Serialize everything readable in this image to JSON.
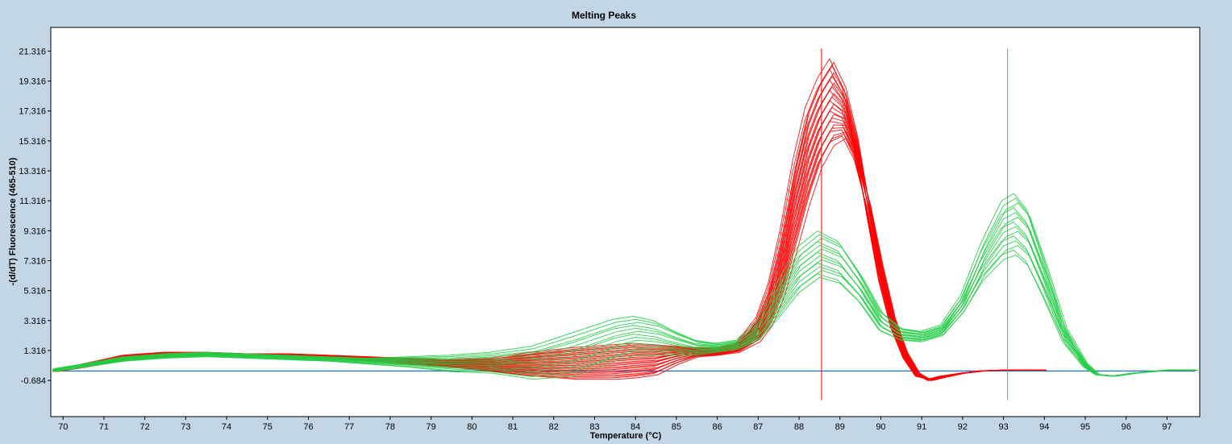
{
  "chart_data": {
    "type": "line",
    "title": "Melting Peaks",
    "xlabel": "Temperature (°C)",
    "ylabel": "-(d/dT) Fluorescence (465-510)",
    "xlim": [
      69.7,
      97.8
    ],
    "ylim": [
      -3.1,
      22.9
    ],
    "x_ticks": [
      "70",
      "71",
      "72",
      "73",
      "74",
      "75",
      "76",
      "77",
      "78",
      "79",
      "80",
      "81",
      "82",
      "83",
      "84",
      "85",
      "86",
      "87",
      "88",
      "89",
      "90",
      "91",
      "92",
      "93",
      "94",
      "95",
      "96",
      "97"
    ],
    "y_ticks": [
      "21.316",
      "19.316",
      "17.316",
      "15.316",
      "13.316",
      "11.316",
      "9.316",
      "7.316",
      "5.316",
      "3.316",
      "1.316",
      "-0.684"
    ],
    "grid": false,
    "legend": "none",
    "baseline": {
      "color": "#1f6fd6",
      "value": -0.05
    },
    "series": [
      {
        "color": "#ff0000",
        "tm_marker": 88.55,
        "x": [
          69.8,
          70.5,
          71.5,
          72.5,
          73.5,
          74.5,
          75.5,
          76.5,
          77.5,
          78.5,
          79.5,
          80.5,
          81.5,
          82.5,
          83.5,
          84.0,
          84.5,
          85.0,
          85.5,
          86.0,
          86.5,
          87.0,
          87.3,
          87.6,
          87.9,
          88.2,
          88.5,
          88.8,
          89.1,
          89.4,
          89.7,
          90.0,
          90.3,
          90.6,
          90.9,
          91.2,
          91.5,
          92.0,
          92.5,
          93.0,
          93.5,
          94.0
        ],
        "y_high": [
          0.0,
          0.4,
          1.0,
          1.2,
          1.2,
          1.1,
          1.1,
          1.0,
          0.9,
          0.8,
          0.7,
          0.8,
          1.2,
          1.5,
          1.7,
          1.8,
          1.7,
          1.6,
          1.5,
          1.5,
          1.8,
          3.5,
          5.8,
          9.5,
          14.0,
          17.5,
          19.5,
          20.8,
          19.0,
          15.5,
          10.5,
          6.0,
          2.8,
          0.8,
          -0.4,
          -0.6,
          -0.4,
          -0.2,
          -0.05,
          0.0,
          0.0,
          0.0
        ],
        "y_low": [
          -0.1,
          0.2,
          0.7,
          0.9,
          1.0,
          1.0,
          0.9,
          0.8,
          0.6,
          0.4,
          0.2,
          -0.1,
          -0.4,
          -0.6,
          -0.6,
          -0.5,
          -0.3,
          0.4,
          0.9,
          1.0,
          1.2,
          1.9,
          3.0,
          5.0,
          8.0,
          11.0,
          13.5,
          15.0,
          15.5,
          14.0,
          11.0,
          7.0,
          3.5,
          1.2,
          -0.2,
          -0.7,
          -0.5,
          -0.2,
          -0.05,
          0.0,
          0.0,
          0.0
        ],
        "count": 26
      },
      {
        "color": "#22cc44",
        "tm_marker": 93.1,
        "x": [
          69.8,
          70.5,
          71.5,
          72.5,
          73.5,
          74.5,
          75.5,
          76.5,
          77.5,
          78.5,
          79.5,
          80.5,
          81.5,
          82.5,
          83.5,
          84.0,
          84.5,
          85.0,
          85.5,
          86.0,
          86.5,
          87.0,
          87.5,
          88.0,
          88.5,
          89.0,
          89.5,
          90.0,
          90.5,
          91.0,
          91.5,
          92.0,
          92.5,
          93.0,
          93.3,
          93.6,
          94.0,
          94.5,
          95.0,
          95.3,
          95.7,
          96.2,
          97.0,
          97.7
        ],
        "y_high": [
          0.1,
          0.4,
          0.9,
          1.1,
          1.2,
          1.1,
          1.0,
          0.9,
          0.8,
          0.9,
          1.0,
          1.2,
          1.6,
          2.5,
          3.4,
          3.6,
          3.3,
          2.6,
          2.0,
          1.8,
          2.0,
          3.2,
          5.8,
          8.2,
          9.3,
          8.6,
          6.5,
          4.0,
          2.8,
          2.6,
          3.0,
          5.0,
          8.5,
          11.3,
          11.8,
          10.8,
          7.5,
          3.0,
          0.5,
          -0.3,
          -0.4,
          -0.2,
          0.0,
          0.0
        ],
        "y_low": [
          -0.1,
          0.2,
          0.6,
          0.8,
          0.9,
          0.8,
          0.7,
          0.6,
          0.4,
          0.2,
          -0.1,
          -0.2,
          -0.6,
          -0.4,
          0.6,
          1.0,
          1.0,
          1.0,
          1.0,
          1.2,
          1.4,
          2.0,
          3.5,
          5.2,
          6.2,
          5.8,
          4.5,
          2.6,
          2.0,
          1.9,
          2.3,
          3.8,
          6.0,
          7.4,
          7.7,
          7.0,
          4.8,
          1.8,
          0.2,
          -0.3,
          -0.4,
          -0.2,
          0.0,
          0.0
        ],
        "count": 14
      }
    ]
  }
}
